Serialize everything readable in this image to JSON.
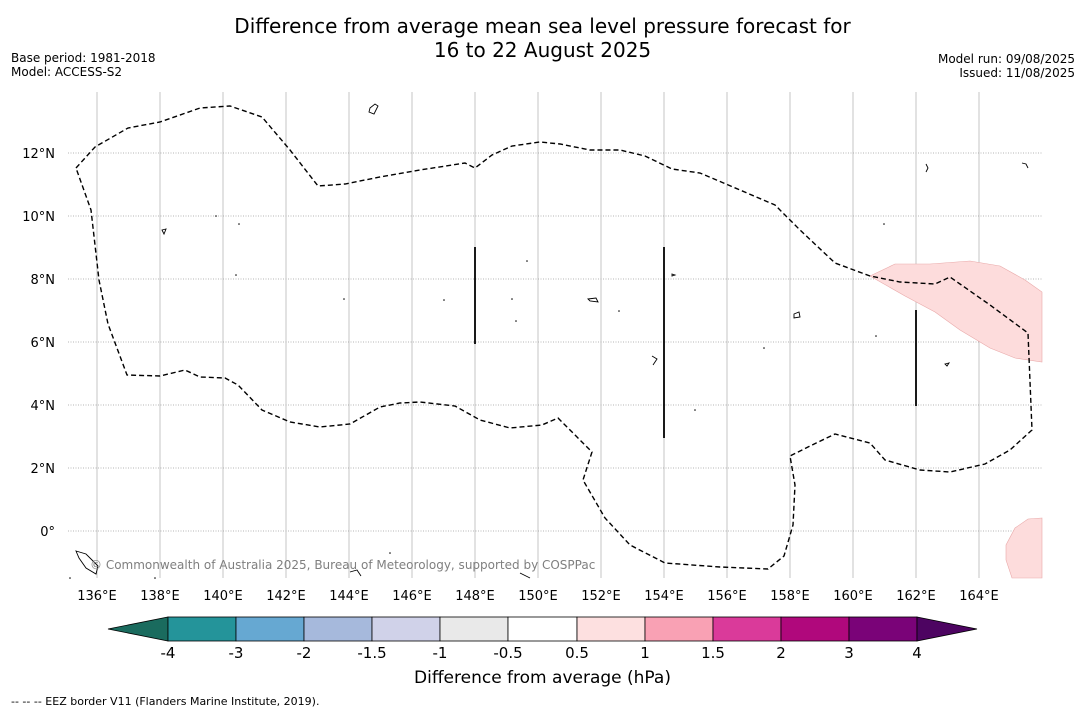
{
  "header": {
    "title_line1": "Difference from average mean sea level pressure forecast for",
    "title_line2": "16 to 22 August 2025",
    "base_period": "Base period: 1981-2018",
    "model": "Model: ACCESS-S2",
    "model_run": "Model run: 09/08/2025",
    "issued": "Issued: 11/08/2025"
  },
  "map": {
    "lon_labels": [
      "136°E",
      "138°E",
      "140°E",
      "142°E",
      "144°E",
      "146°E",
      "148°E",
      "150°E",
      "152°E",
      "154°E",
      "156°E",
      "158°E",
      "160°E",
      "162°E",
      "164°E"
    ],
    "lat_labels": [
      "12°N",
      "10°N",
      "8°N",
      "6°N",
      "4°N",
      "2°N",
      "0°"
    ],
    "copyright": "© Commonwealth of Australia 2025, Bureau of Meteorology, supported by COSPPac",
    "colors": {
      "eez_border": "#000000",
      "positive_anomaly": "#fddcdc",
      "grid": "#9e9e9e"
    }
  },
  "colorbar": {
    "ticks": [
      "-4",
      "-3",
      "-2",
      "-1.5",
      "-1",
      "-0.5",
      "0.5",
      "1",
      "1.5",
      "2",
      "3",
      "4"
    ],
    "colors": [
      "#1a6b5e",
      "#24949a",
      "#66a8d2",
      "#a6b9dc",
      "#d0d2e9",
      "#e9e9e9",
      "#ffffff",
      "#fde0e0",
      "#f9a1b4",
      "#da3a9a",
      "#b0087c",
      "#7a0378",
      "#4d0461"
    ],
    "label": "Difference from average (hPa)"
  },
  "footnote": "--  --  -- EEZ border V11 (Flanders Marine Institute, 2019)."
}
